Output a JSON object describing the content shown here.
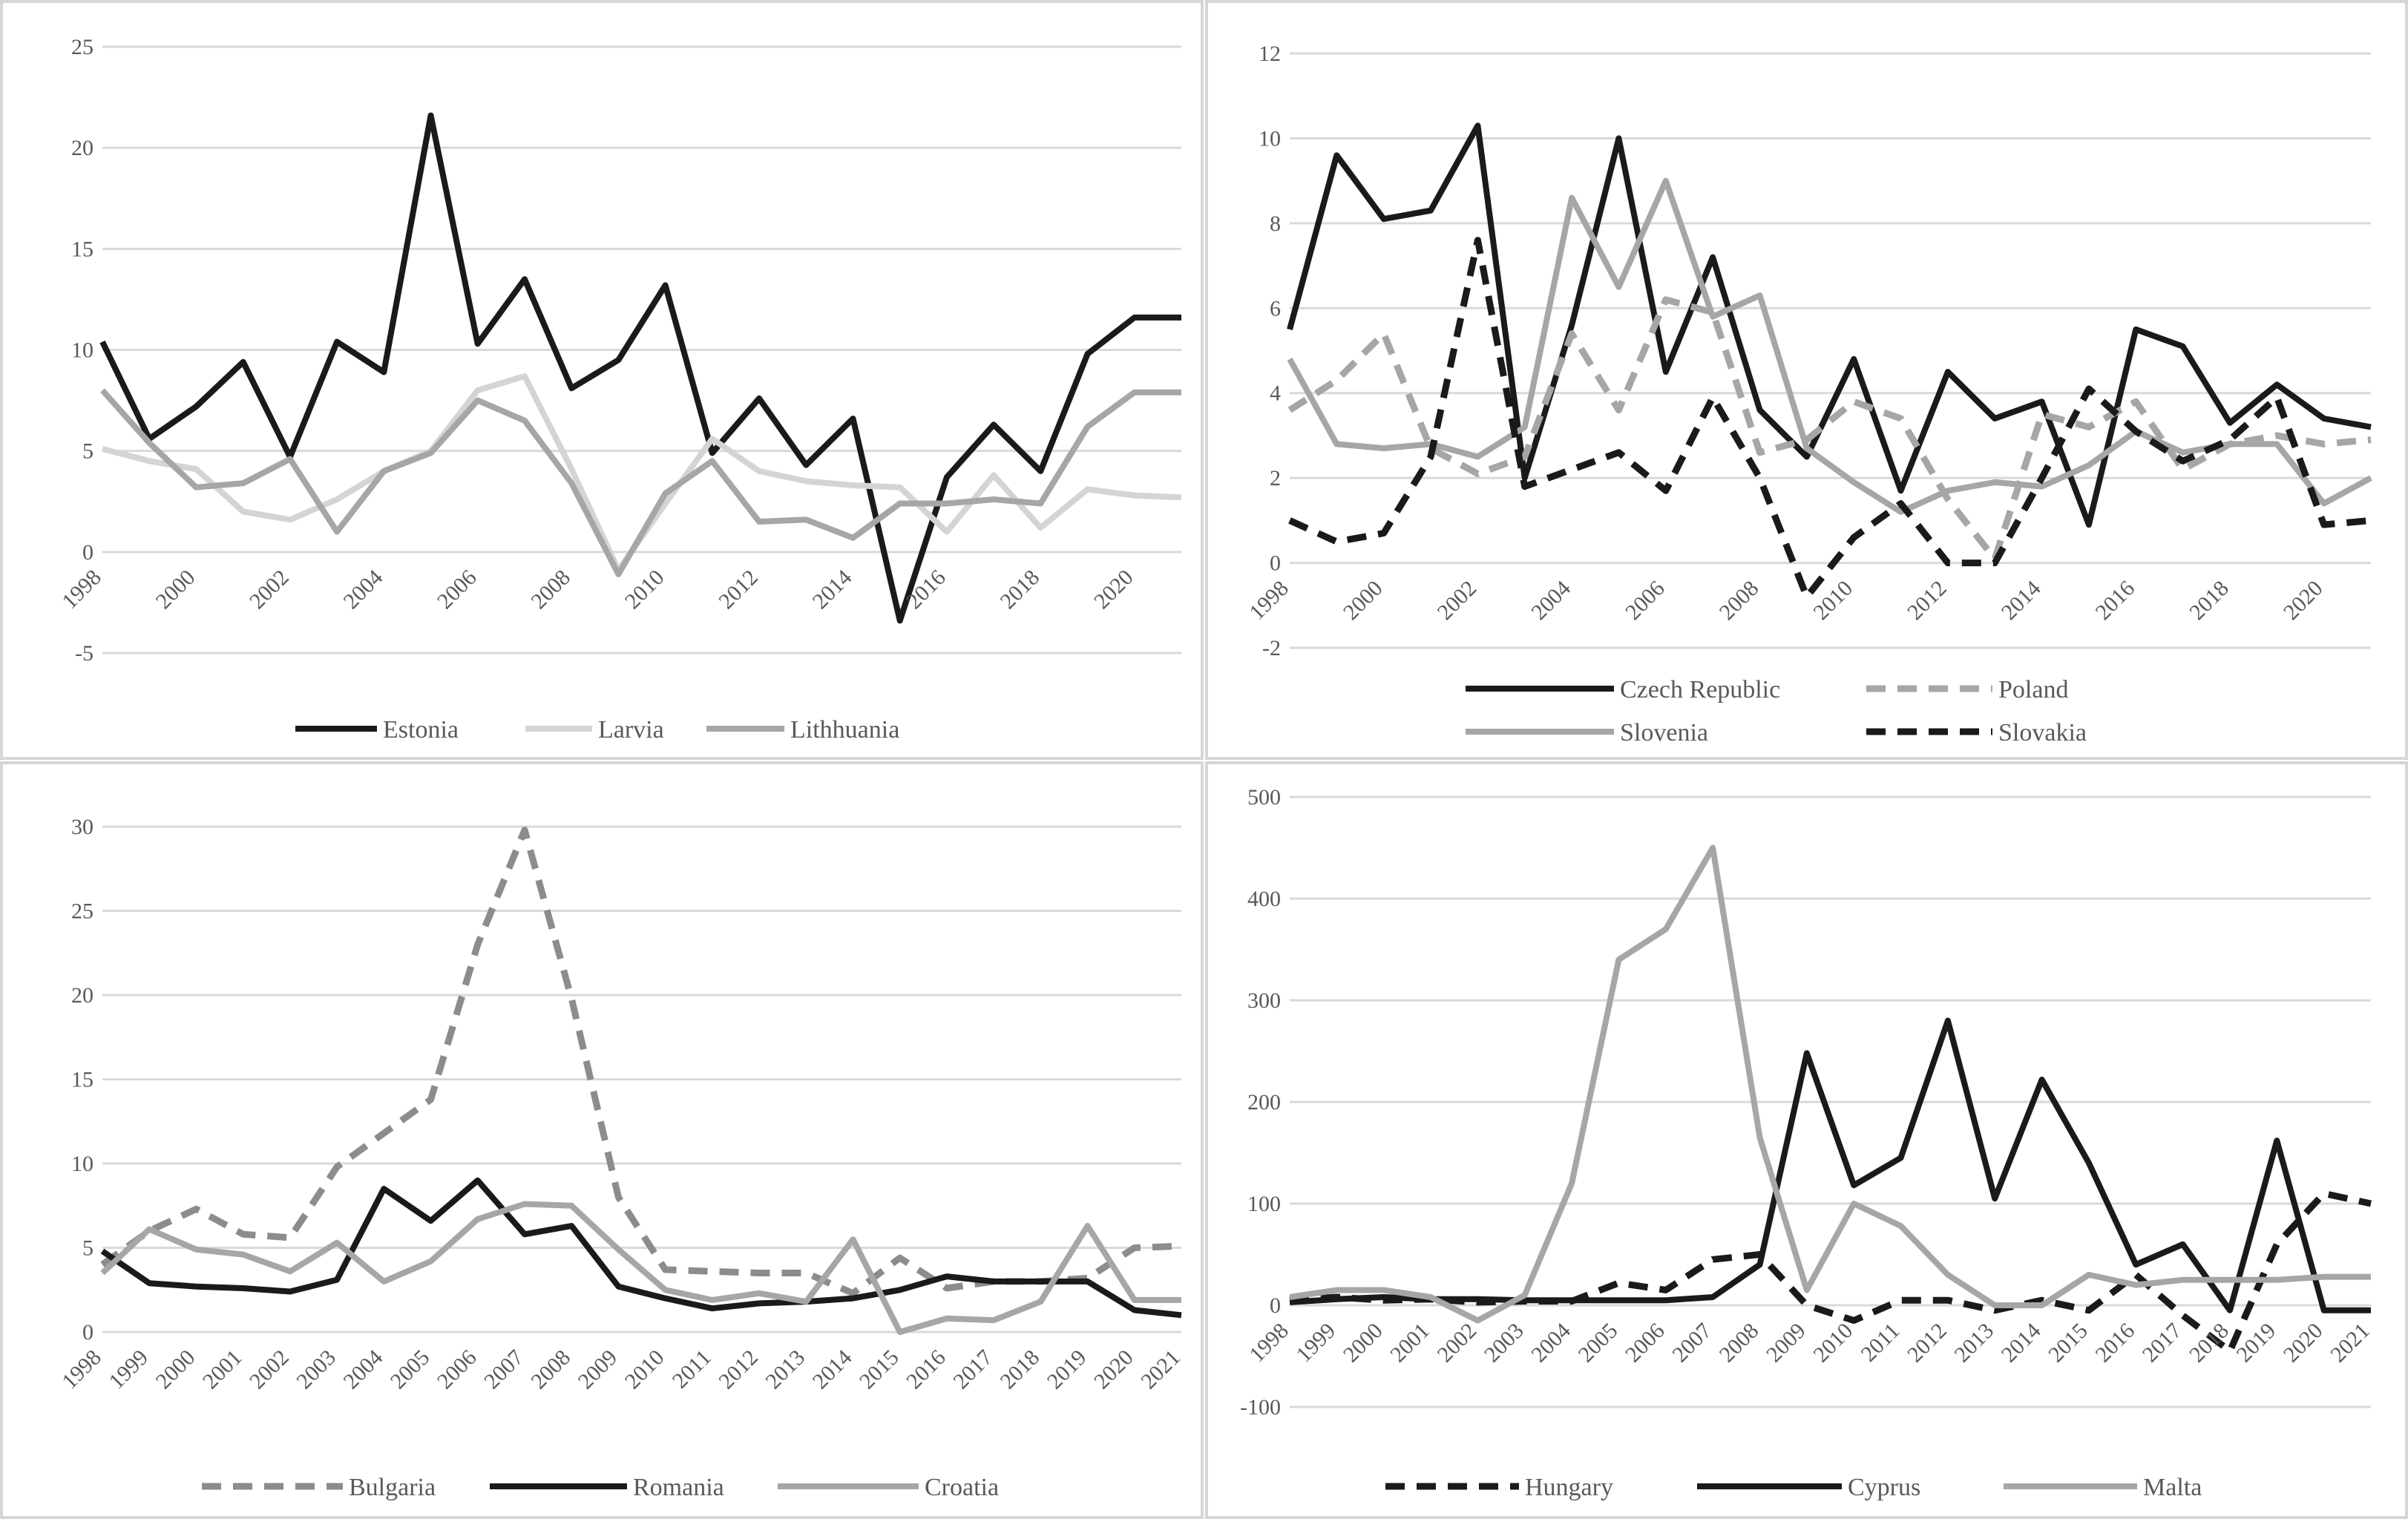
{
  "chart_data": [
    {
      "type": "line",
      "title": "",
      "xlabel": "",
      "ylabel": "",
      "ylim": [
        -5,
        25
      ],
      "yticks": [
        "25",
        "20",
        "15",
        "10",
        "5",
        "0",
        "-5"
      ],
      "x": [
        1998,
        1999,
        2000,
        2001,
        2002,
        2003,
        2004,
        2005,
        2006,
        2007,
        2008,
        2009,
        2010,
        2011,
        2012,
        2013,
        2014,
        2015,
        2016,
        2017,
        2018,
        2019,
        2020,
        2021
      ],
      "xtick_labels": [
        "1998",
        "2000",
        "2002",
        "2004",
        "2006",
        "2008",
        "2010",
        "2012",
        "2014",
        "2016",
        "2018",
        "2020"
      ],
      "legend": "bottom",
      "series": [
        {
          "name": "Estonia",
          "color": "#1a1a1a",
          "dash": "solid",
          "values": [
            10.4,
            5.6,
            7.2,
            9.4,
            4.7,
            10.4,
            8.9,
            21.6,
            10.3,
            13.5,
            8.1,
            9.5,
            13.2,
            4.9,
            7.6,
            4.3,
            6.6,
            -3.4,
            3.7,
            6.3,
            4.0,
            9.8,
            11.6,
            11.6
          ]
        },
        {
          "name": "Larvia",
          "color": "#d4d4d4",
          "dash": "solid",
          "values": [
            5.1,
            4.5,
            4.1,
            2.0,
            1.6,
            2.6,
            4.0,
            5.0,
            8.0,
            8.7,
            4.1,
            -0.9,
            2.4,
            5.6,
            4.0,
            3.5,
            3.3,
            3.2,
            1.0,
            3.8,
            1.2,
            3.1,
            2.8,
            2.7
          ]
        },
        {
          "name": "Lithhuania",
          "color": "#a6a6a6",
          "dash": "solid",
          "values": [
            8.0,
            5.4,
            3.2,
            3.4,
            4.6,
            1.0,
            4.0,
            4.9,
            7.5,
            6.5,
            3.4,
            -1.1,
            2.9,
            4.5,
            1.5,
            1.6,
            0.7,
            2.4,
            2.4,
            2.6,
            2.4,
            6.2,
            7.9,
            7.9
          ]
        }
      ]
    },
    {
      "type": "line",
      "title": "",
      "xlabel": "",
      "ylabel": "",
      "ylim": [
        -2,
        12
      ],
      "yticks": [
        "12",
        "10",
        "8",
        "6",
        "4",
        "2",
        "0",
        "-2"
      ],
      "x": [
        1998,
        1999,
        2000,
        2001,
        2002,
        2003,
        2004,
        2005,
        2006,
        2007,
        2008,
        2009,
        2010,
        2011,
        2012,
        2013,
        2014,
        2015,
        2016,
        2017,
        2018,
        2019,
        2020,
        2021
      ],
      "xtick_labels": [
        "1998",
        "2000",
        "2002",
        "2004",
        "2006",
        "2008",
        "2010",
        "2012",
        "2014",
        "2016",
        "2018",
        "2020"
      ],
      "legend": "bottom",
      "series": [
        {
          "name": "Czech Republic",
          "color": "#1a1a1a",
          "dash": "solid",
          "values": [
            5.5,
            9.6,
            8.1,
            8.3,
            10.3,
            2.0,
            5.6,
            10.0,
            4.5,
            7.2,
            3.6,
            2.5,
            4.8,
            1.7,
            4.5,
            3.4,
            3.8,
            0.9,
            5.5,
            5.1,
            3.3,
            4.2,
            3.4,
            3.2
          ]
        },
        {
          "name": "Poland",
          "color": "#a6a6a6",
          "dash": "dashed",
          "values": [
            3.6,
            4.3,
            5.4,
            2.7,
            2.1,
            2.5,
            5.4,
            3.6,
            6.2,
            5.9,
            2.6,
            2.9,
            3.8,
            3.4,
            1.5,
            0.1,
            3.5,
            3.2,
            3.8,
            2.2,
            2.8,
            3.0,
            2.8,
            2.9
          ]
        },
        {
          "name": "Slovenia",
          "color": "#a6a6a6",
          "dash": "solid",
          "values": [
            4.8,
            2.8,
            2.7,
            2.8,
            2.5,
            3.2,
            8.6,
            6.5,
            9.0,
            5.8,
            6.3,
            2.7,
            1.9,
            1.2,
            1.7,
            1.9,
            1.8,
            2.3,
            3.1,
            2.6,
            2.8,
            2.8,
            1.4,
            2.0
          ]
        },
        {
          "name": "Slovakia",
          "color": "#1a1a1a",
          "dash": "dashed",
          "values": [
            1.0,
            0.5,
            0.7,
            2.5,
            7.6,
            1.8,
            2.2,
            2.6,
            1.7,
            3.9,
            2.0,
            -0.8,
            0.6,
            1.4,
            0.0,
            0.0,
            2.0,
            4.1,
            3.1,
            2.4,
            2.9,
            3.9,
            0.9,
            1.0
          ]
        }
      ]
    },
    {
      "type": "line",
      "title": "",
      "xlabel": "",
      "ylabel": "",
      "ylim": [
        0,
        30
      ],
      "yticks": [
        "30",
        "25",
        "20",
        "15",
        "10",
        "5",
        "0"
      ],
      "x": [
        1998,
        1999,
        2000,
        2001,
        2002,
        2003,
        2004,
        2005,
        2006,
        2007,
        2008,
        2009,
        2010,
        2011,
        2012,
        2013,
        2014,
        2015,
        2016,
        2017,
        2018,
        2019,
        2020,
        2021
      ],
      "xtick_labels": [
        "1998",
        "1999",
        "2000",
        "2001",
        "2002",
        "2003",
        "2004",
        "2005",
        "2006",
        "2007",
        "2008",
        "2009",
        "2010",
        "2011",
        "2012",
        "2013",
        "2014",
        "2015",
        "2016",
        "2017",
        "2018",
        "2019",
        "2020",
        "2021"
      ],
      "legend": "bottom",
      "series": [
        {
          "name": "Bulgaria",
          "color": "#8c8c8c",
          "dash": "dashed",
          "values": [
            4.0,
            6.0,
            7.3,
            5.8,
            5.6,
            9.8,
            11.8,
            13.8,
            23.0,
            29.8,
            19.8,
            8.0,
            3.7,
            3.6,
            3.5,
            3.5,
            2.3,
            4.4,
            2.6,
            3.0,
            3.0,
            3.2,
            5.0,
            5.1
          ]
        },
        {
          "name": "Romania",
          "color": "#1a1a1a",
          "dash": "solid",
          "values": [
            4.8,
            2.9,
            2.7,
            2.6,
            2.4,
            3.1,
            8.5,
            6.6,
            9.0,
            5.8,
            6.3,
            2.7,
            2.0,
            1.4,
            1.7,
            1.8,
            2.0,
            2.5,
            3.3,
            3.0,
            3.0,
            3.0,
            1.3,
            1.0
          ]
        },
        {
          "name": "Croatia",
          "color": "#a6a6a6",
          "dash": "solid",
          "values": [
            3.5,
            6.1,
            4.9,
            4.6,
            3.6,
            5.3,
            3.0,
            4.2,
            6.7,
            7.6,
            7.5,
            4.9,
            2.5,
            1.9,
            2.3,
            1.8,
            5.5,
            0.0,
            0.8,
            0.7,
            1.8,
            6.3,
            1.9,
            1.9
          ]
        }
      ]
    },
    {
      "type": "line",
      "title": "",
      "xlabel": "",
      "ylabel": "",
      "ylim": [
        -100,
        500
      ],
      "yticks": [
        "500",
        "400",
        "300",
        "200",
        "100",
        "0",
        "-100"
      ],
      "x": [
        1998,
        1999,
        2000,
        2001,
        2002,
        2003,
        2004,
        2005,
        2006,
        2007,
        2008,
        2009,
        2010,
        2011,
        2012,
        2013,
        2014,
        2015,
        2016,
        2017,
        2018,
        2019,
        2020,
        2021
      ],
      "xtick_labels": [
        "1998",
        "1999",
        "2000",
        "2001",
        "2002",
        "2003",
        "2004",
        "2005",
        "2006",
        "2007",
        "2008",
        "2009",
        "2010",
        "2011",
        "2012",
        "2013",
        "2014",
        "2015",
        "2016",
        "2017",
        "2018",
        "2019",
        "2020",
        "2021"
      ],
      "legend": "bottom",
      "series": [
        {
          "name": "Hungary",
          "color": "#1a1a1a",
          "dash": "dashed",
          "values": [
            5,
            8,
            5,
            6,
            3,
            4,
            4,
            22,
            15,
            45,
            50,
            0,
            -15,
            5,
            5,
            -5,
            5,
            -5,
            30,
            -10,
            -45,
            60,
            110,
            100
          ]
        },
        {
          "name": "Cyprus",
          "color": "#1a1a1a",
          "dash": "solid",
          "values": [
            3,
            6,
            8,
            6,
            6,
            5,
            5,
            5,
            5,
            8,
            40,
            248,
            118,
            145,
            280,
            105,
            222,
            140,
            40,
            60,
            -5,
            162,
            -5,
            -5
          ]
        },
        {
          "name": "Malta",
          "color": "#a6a6a6",
          "dash": "solid",
          "values": [
            8,
            15,
            15,
            8,
            -15,
            10,
            120,
            340,
            370,
            450,
            165,
            15,
            100,
            78,
            30,
            0,
            0,
            30,
            20,
            25,
            25,
            25,
            28,
            28
          ]
        }
      ]
    }
  ]
}
